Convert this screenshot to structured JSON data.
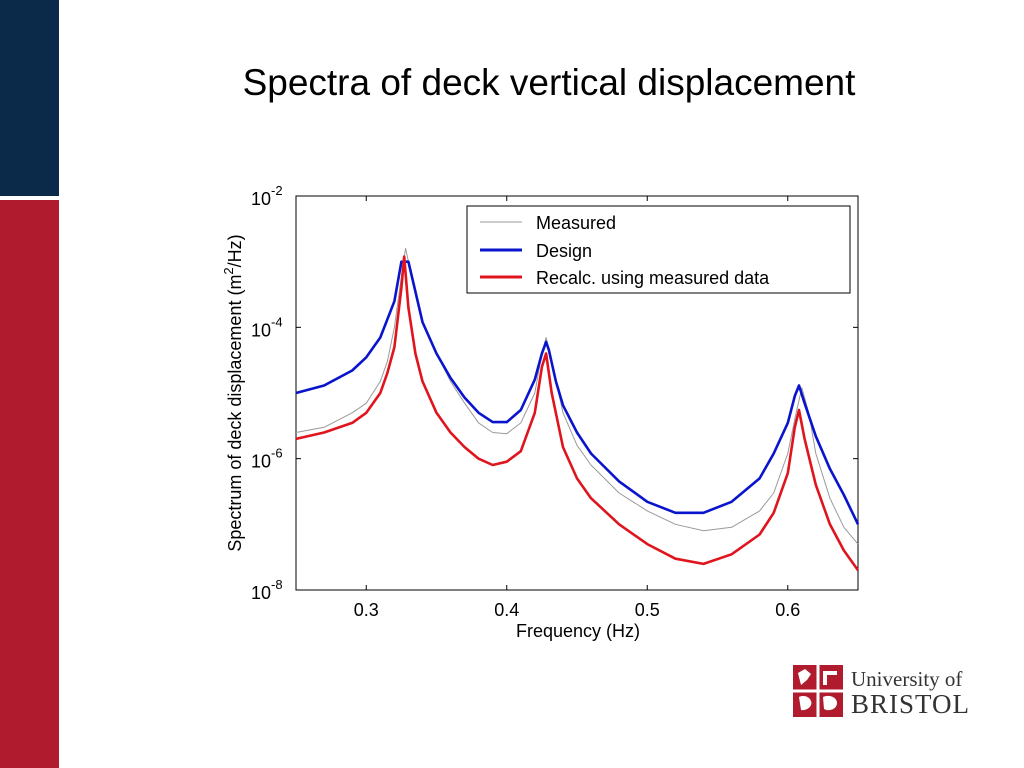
{
  "slide": {
    "title": "Spectra of deck vertical displacement",
    "accent_colors": {
      "navy": "#0b2a4a",
      "crimson": "#b01c2e"
    }
  },
  "logo": {
    "line1": "University of",
    "line2": "BRISTOL",
    "color": "#b01c2e"
  },
  "chart_data": {
    "type": "line",
    "y_scale": "log",
    "xlim": [
      0.25,
      0.65
    ],
    "ylim": [
      1e-08,
      0.01
    ],
    "xlabel": "Frequency (Hz)",
    "ylabel_parts": [
      "Spectrum of deck displacement (m",
      "2",
      "/Hz)"
    ],
    "x_ticks": [
      {
        "value": 0.3,
        "label": "0.3"
      },
      {
        "value": 0.4,
        "label": "0.4"
      },
      {
        "value": 0.5,
        "label": "0.5"
      },
      {
        "value": 0.6,
        "label": "0.6"
      }
    ],
    "y_ticks": [
      {
        "value": 0.01,
        "base": "10",
        "exp": "-2"
      },
      {
        "value": 0.0001,
        "base": "10",
        "exp": "-4"
      },
      {
        "value": 1e-06,
        "base": "10",
        "exp": "-6"
      },
      {
        "value": 1e-08,
        "base": "10",
        "exp": "-8"
      }
    ],
    "legend_position": "top-right",
    "series": [
      {
        "name": "Measured",
        "color": "#9a9a9a",
        "x": [
          0.25,
          0.27,
          0.29,
          0.3,
          0.31,
          0.315,
          0.32,
          0.325,
          0.328,
          0.333,
          0.34,
          0.35,
          0.36,
          0.37,
          0.38,
          0.39,
          0.4,
          0.41,
          0.42,
          0.425,
          0.428,
          0.432,
          0.44,
          0.45,
          0.46,
          0.48,
          0.5,
          0.52,
          0.54,
          0.56,
          0.58,
          0.59,
          0.6,
          0.605,
          0.61,
          0.615,
          0.62,
          0.63,
          0.64,
          0.65
        ],
        "y": [
          2.5e-06,
          3e-06,
          5e-06,
          7e-06,
          1.5e-05,
          3e-05,
          0.0001,
          0.0006,
          0.0016,
          0.0005,
          0.00012,
          4e-05,
          1.5e-05,
          7e-06,
          3.5e-06,
          2.5e-06,
          2.4e-06,
          3.5e-06,
          1e-05,
          4e-05,
          7e-05,
          3e-05,
          5e-06,
          1.6e-06,
          8e-07,
          3e-07,
          1.6e-07,
          1e-07,
          8e-08,
          9e-08,
          1.6e-07,
          3e-07,
          1.2e-06,
          4e-06,
          1.2e-05,
          5e-06,
          1.2e-06,
          2.5e-07,
          9e-08,
          5e-08
        ]
      },
      {
        "name": "Design",
        "color": "#0a14cc",
        "x": [
          0.25,
          0.27,
          0.29,
          0.3,
          0.31,
          0.32,
          0.325,
          0.33,
          0.335,
          0.34,
          0.35,
          0.36,
          0.37,
          0.38,
          0.39,
          0.4,
          0.41,
          0.42,
          0.425,
          0.428,
          0.43,
          0.435,
          0.44,
          0.45,
          0.46,
          0.48,
          0.5,
          0.52,
          0.54,
          0.56,
          0.58,
          0.59,
          0.6,
          0.605,
          0.608,
          0.612,
          0.62,
          0.63,
          0.64,
          0.65
        ],
        "y": [
          1e-05,
          1.3e-05,
          2.2e-05,
          3.5e-05,
          7e-05,
          0.00025,
          0.001,
          0.001,
          0.00035,
          0.00012,
          4e-05,
          1.7e-05,
          8.5e-06,
          5e-06,
          3.6e-06,
          3.6e-06,
          5.5e-06,
          1.6e-05,
          4e-05,
          6e-05,
          4.5e-05,
          1.5e-05,
          6.5e-06,
          2.5e-06,
          1.2e-06,
          4.5e-07,
          2.2e-07,
          1.5e-07,
          1.5e-07,
          2.2e-07,
          5e-07,
          1.2e-06,
          3.5e-06,
          9e-06,
          1.3e-05,
          7e-06,
          2.2e-06,
          7e-07,
          2.8e-07,
          1e-07
        ]
      },
      {
        "name": "Recalc. using measured data",
        "color": "#e0141c",
        "x": [
          0.25,
          0.27,
          0.29,
          0.3,
          0.31,
          0.315,
          0.32,
          0.325,
          0.327,
          0.33,
          0.335,
          0.34,
          0.35,
          0.36,
          0.37,
          0.38,
          0.39,
          0.4,
          0.41,
          0.42,
          0.425,
          0.428,
          0.432,
          0.44,
          0.45,
          0.46,
          0.48,
          0.5,
          0.52,
          0.54,
          0.56,
          0.58,
          0.59,
          0.6,
          0.605,
          0.608,
          0.612,
          0.62,
          0.63,
          0.64,
          0.65
        ],
        "y": [
          2e-06,
          2.5e-06,
          3.5e-06,
          5e-06,
          1e-05,
          2e-05,
          5e-05,
          0.0004,
          0.0012,
          0.0002,
          4e-05,
          1.5e-05,
          5e-06,
          2.5e-06,
          1.5e-06,
          1e-06,
          8e-07,
          9e-07,
          1.3e-06,
          5e-06,
          2.5e-05,
          4e-05,
          1e-05,
          1.5e-06,
          5e-07,
          2.5e-07,
          1e-07,
          5e-08,
          3e-08,
          2.5e-08,
          3.5e-08,
          7e-08,
          1.5e-07,
          6e-07,
          3e-06,
          5.5e-06,
          2e-06,
          4e-07,
          1e-07,
          4e-08,
          2e-08
        ]
      }
    ]
  }
}
